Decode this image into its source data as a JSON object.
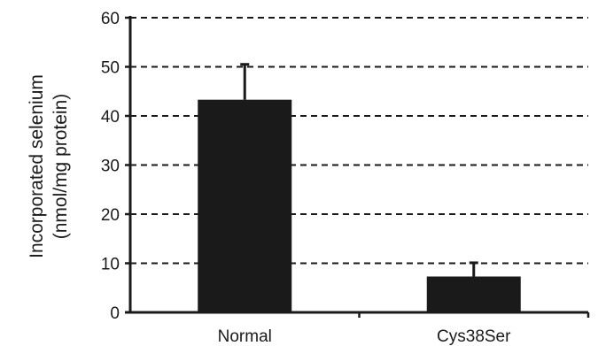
{
  "chart_data": {
    "type": "bar",
    "categories": [
      "Normal",
      "Cys38Ser"
    ],
    "values": [
      43.3,
      7.3
    ],
    "errors": [
      7.2,
      2.8
    ],
    "ylabel_lines": [
      "Incorporated selenium",
      "(nmol/mg protein)"
    ],
    "ylim": [
      0,
      60
    ],
    "yticks": [
      0,
      10,
      20,
      30,
      40,
      50,
      60
    ],
    "grid": true,
    "bar_color": "#1a1a1a"
  }
}
